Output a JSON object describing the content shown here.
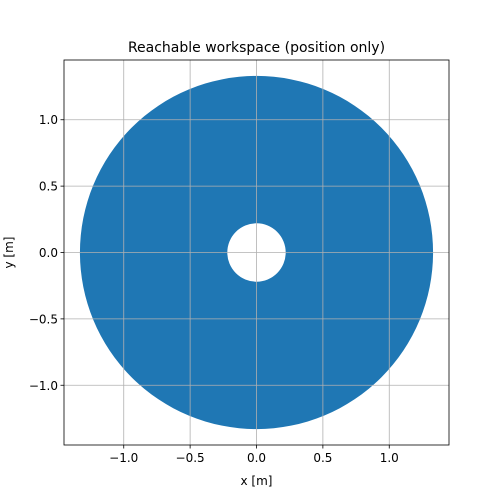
{
  "chart_data": {
    "type": "scatter",
    "title": "Reachable workspace (position only)",
    "xlabel": "x [m]",
    "ylabel": "y [m]",
    "xlim": [
      -1.45,
      1.45
    ],
    "ylim": [
      -1.45,
      1.45
    ],
    "x_ticks": [
      -1.0,
      -0.5,
      0.0,
      0.5,
      1.0
    ],
    "y_ticks": [
      -1.0,
      -0.5,
      0.0,
      0.5,
      1.0
    ],
    "x_tick_labels": [
      "−1.0",
      "−0.5",
      "0.0",
      "0.5",
      "1.0"
    ],
    "y_tick_labels": [
      "−1.0",
      "−0.5",
      "0.0",
      "0.5",
      "1.0"
    ],
    "grid": true,
    "series": [
      {
        "shape": "annulus",
        "center": [
          0.0,
          0.0
        ],
        "outer_radius": 1.33,
        "inner_radius": 0.22
      }
    ],
    "colors": {
      "points": "#1f77b4",
      "grid": "#b0b0b0",
      "axes": "#000000"
    }
  }
}
